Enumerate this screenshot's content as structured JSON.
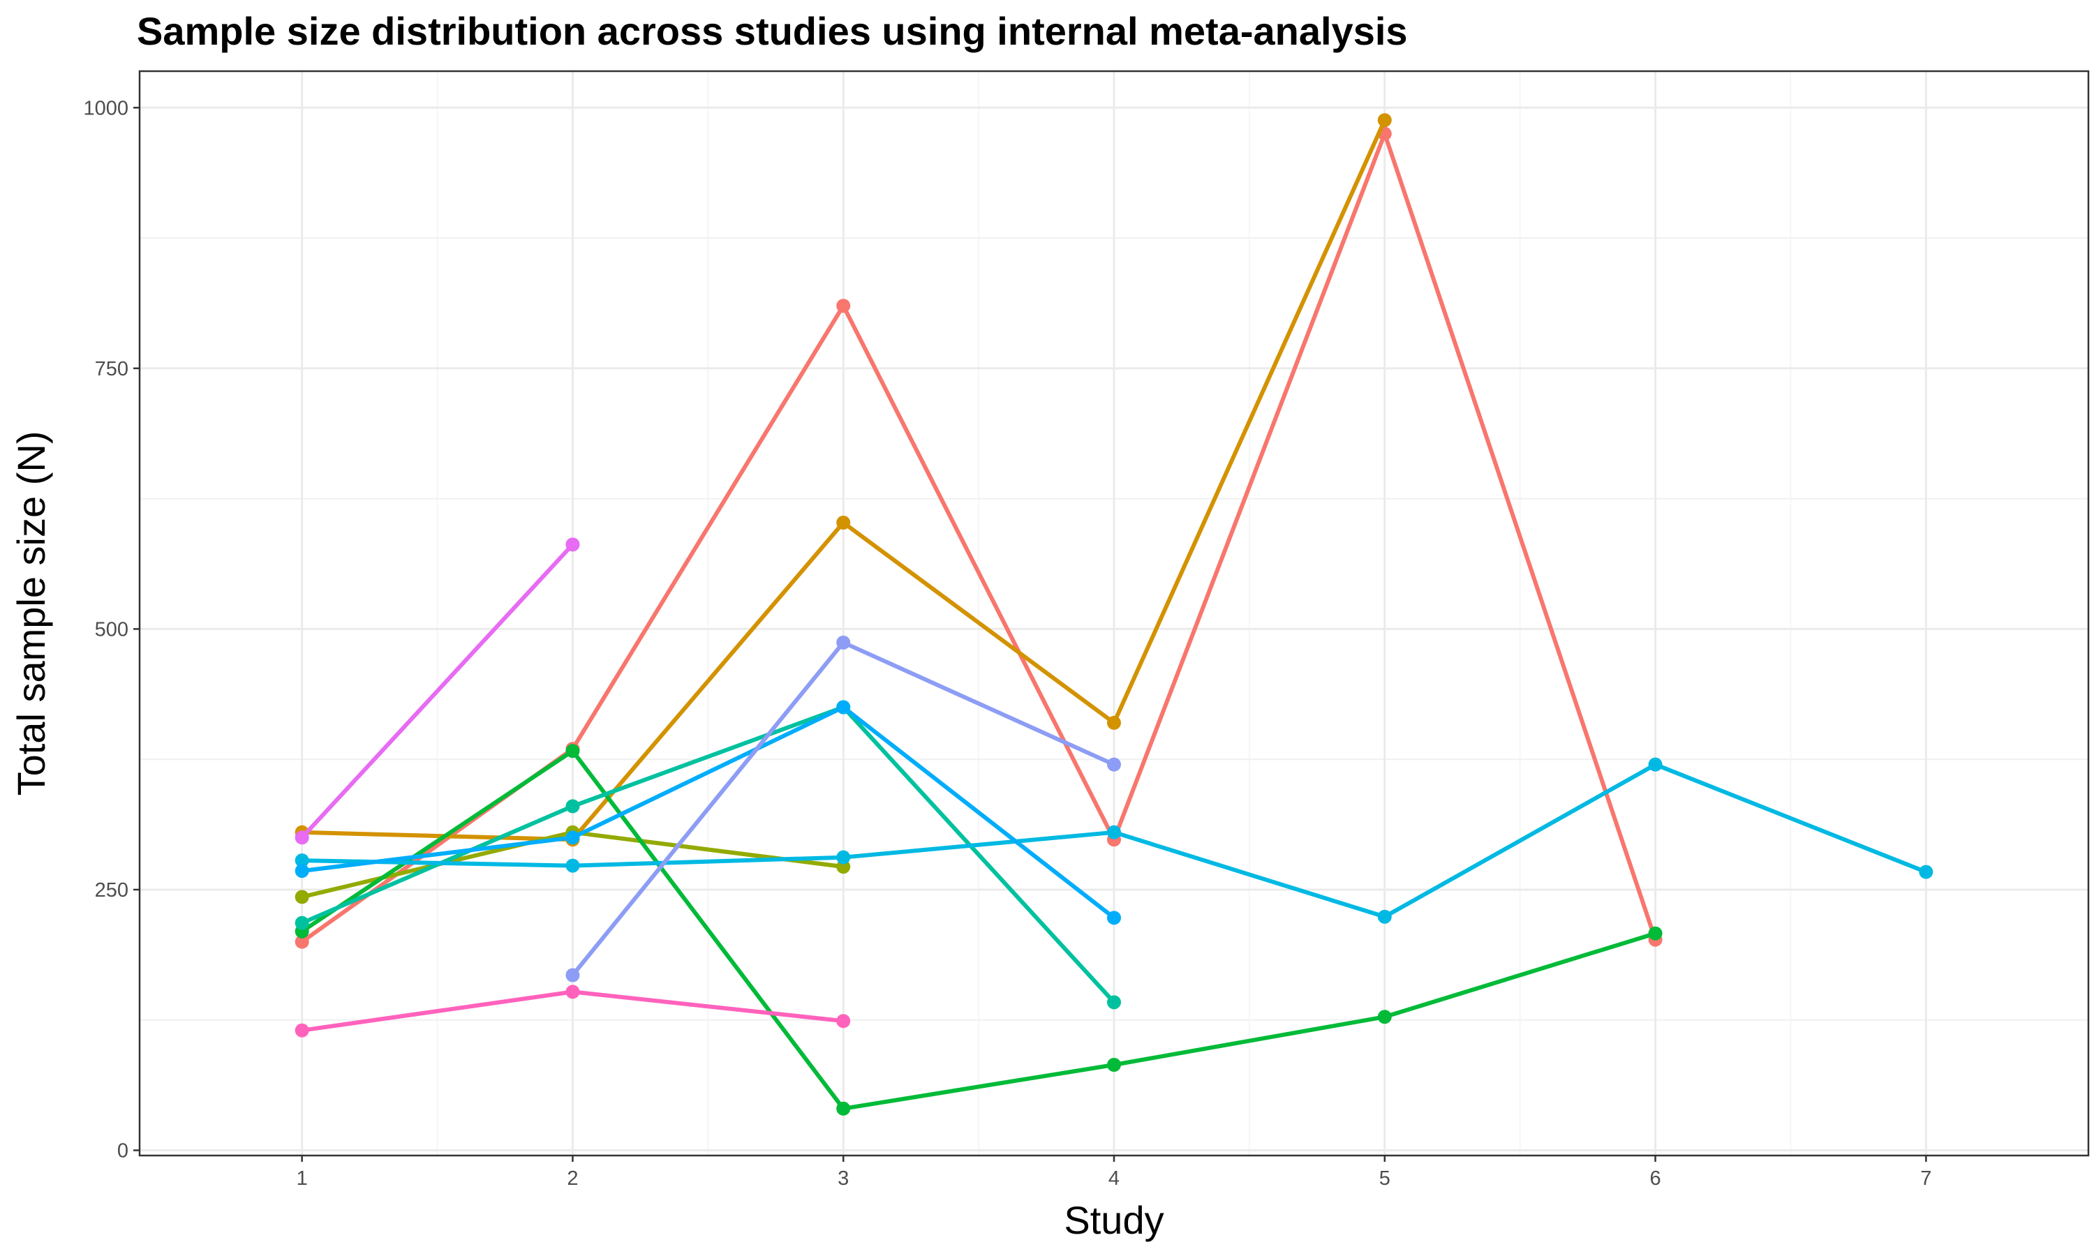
{
  "chart_data": {
    "type": "line",
    "title": "Sample size distribution across studies using internal meta-analysis",
    "xlabel": "Study",
    "ylabel": "Total sample size (N)",
    "xlim": [
      0.4,
      7.6
    ],
    "ylim": [
      -5,
      1035
    ],
    "x_ticks": [
      1,
      2,
      3,
      4,
      5,
      6,
      7
    ],
    "x_tick_labels": [
      "1",
      "2",
      "3",
      "4",
      "5",
      "6",
      "7"
    ],
    "y_ticks": [
      0,
      250,
      500,
      750,
      1000
    ],
    "y_tick_labels": [
      "0",
      "250",
      "500",
      "750",
      "1000"
    ],
    "y_minor_ticks": [
      125,
      375,
      625,
      875
    ],
    "grid": true,
    "legend": "none",
    "series": [
      {
        "color": "#F8766D",
        "x": [
          1,
          2,
          3,
          4,
          5,
          6
        ],
        "y": [
          200,
          385,
          810,
          298,
          975,
          202
        ]
      },
      {
        "color": "#D39200",
        "x": [
          1,
          2,
          3,
          4,
          5
        ],
        "y": [
          305,
          298,
          602,
          410,
          988
        ]
      },
      {
        "color": "#93AA00",
        "x": [
          1,
          2,
          3
        ],
        "y": [
          243,
          305,
          272
        ]
      },
      {
        "color": "#00BA38",
        "x": [
          1,
          2,
          3,
          4,
          5,
          6
        ],
        "y": [
          210,
          383,
          40,
          82,
          128,
          208
        ]
      },
      {
        "color": "#00C19F",
        "x": [
          1,
          2,
          3,
          4
        ],
        "y": [
          218,
          330,
          425,
          142
        ]
      },
      {
        "color": "#00B9E3",
        "x": [
          1,
          2,
          3,
          4,
          5,
          6,
          7
        ],
        "y": [
          278,
          273,
          281,
          305,
          224,
          370,
          267
        ]
      },
      {
        "color": "#00ADFA",
        "x": [
          1,
          2,
          3,
          4
        ],
        "y": [
          268,
          300,
          425,
          223
        ]
      },
      {
        "color": "#8D9DF5",
        "x": [
          2,
          3,
          4
        ],
        "y": [
          168,
          487,
          370
        ]
      },
      {
        "color": "#E76BF3",
        "x": [
          1,
          2
        ],
        "y": [
          300,
          581
        ]
      },
      {
        "color": "#FF62BC",
        "x": [
          1,
          2,
          3
        ],
        "y": [
          115,
          152,
          124
        ]
      }
    ]
  }
}
